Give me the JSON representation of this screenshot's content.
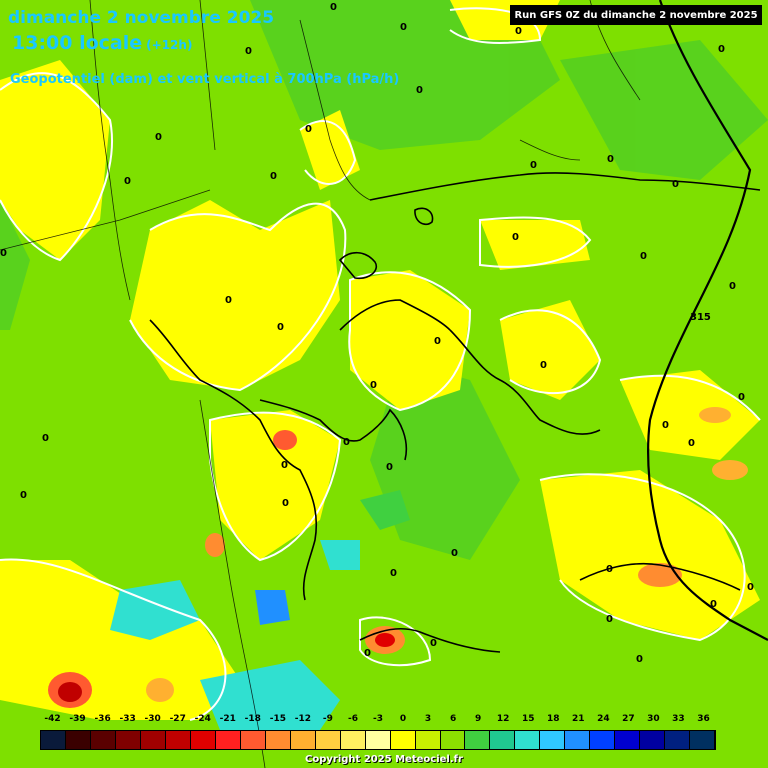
{
  "header": {
    "date_line": "dimanche 2 novembre 2025",
    "time_line": "13:00 locale",
    "offset": "(+12h)",
    "parameter": "Geopotentiel (dam) et vent vertical à 700hPa (hPa/h)",
    "run_info": "Run GFS 0Z du dimanche 2 novembre 2025"
  },
  "legend": {
    "labels": [
      "-42",
      "-39",
      "-36",
      "-33",
      "-30",
      "-27",
      "-24",
      "-21",
      "-18",
      "-15",
      "-12",
      "-9",
      "-6",
      "-3",
      "0",
      "3",
      "6",
      "9",
      "12",
      "15",
      "18",
      "21",
      "24",
      "27",
      "30",
      "33",
      "36"
    ],
    "colors": [
      "#0a1a3a",
      "#3a0000",
      "#5a0000",
      "#800000",
      "#a00000",
      "#c00000",
      "#e00000",
      "#ff2020",
      "#ff5a30",
      "#ff8c30",
      "#ffb030",
      "#ffd040",
      "#fff060",
      "#ffffa0",
      "#ffff00",
      "#c8f000",
      "#8ce000",
      "#40d040",
      "#20c890",
      "#30e0d0",
      "#30c8ff",
      "#2090ff",
      "#0040ff",
      "#0000d0",
      "#0000a0",
      "#002080",
      "#003060"
    ]
  },
  "map_labels": {
    "zero_values": [
      "0",
      "0",
      "0",
      "0",
      "0",
      "0",
      "0",
      "0",
      "0",
      "0",
      "0",
      "0",
      "0",
      "0",
      "0",
      "0",
      "0",
      "0",
      "0",
      "0",
      "0",
      "0",
      "0",
      "0",
      "0",
      "0",
      "0",
      "0",
      "0",
      "0",
      "0",
      "0",
      "0",
      "0",
      "0",
      "0",
      "0",
      "0",
      "0",
      "0"
    ],
    "geopotential": "315"
  },
  "copyright": "Copyright 2025 Meteociel.fr"
}
